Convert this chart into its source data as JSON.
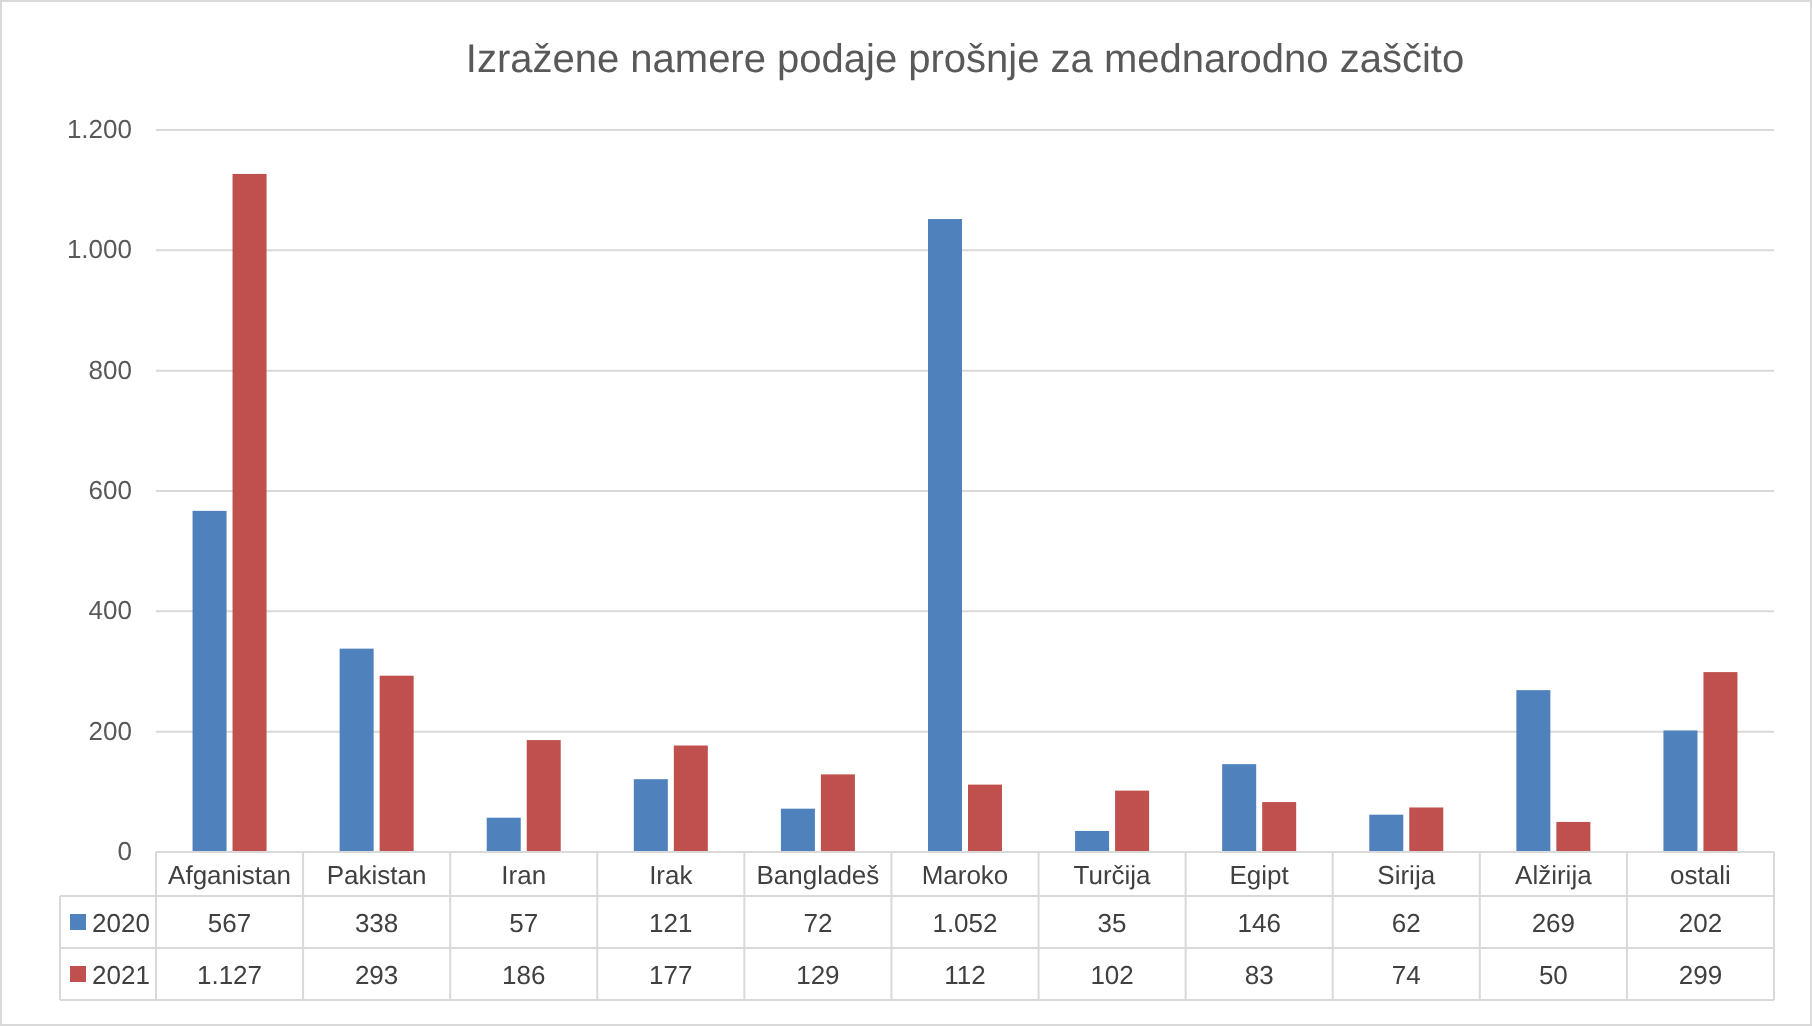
{
  "chart_data": {
    "type": "bar",
    "title": "Izražene namere podaje prošnje za mednarodno zaščito",
    "categories": [
      "Afganistan",
      "Pakistan",
      "Iran",
      "Irak",
      "Bangladeš",
      "Maroko",
      "Turčija",
      "Egipt",
      "Sirija",
      "Alžirija",
      "ostali"
    ],
    "series": [
      {
        "name": "2020",
        "color": "#4f81bd",
        "values": [
          567,
          338,
          57,
          121,
          72,
          1052,
          35,
          146,
          62,
          269,
          202
        ],
        "value_labels": [
          "567",
          "338",
          "57",
          "121",
          "72",
          "1.052",
          "35",
          "146",
          "62",
          "269",
          "202"
        ]
      },
      {
        "name": "2021",
        "color": "#c0504d",
        "values": [
          1127,
          293,
          186,
          177,
          129,
          112,
          102,
          83,
          74,
          50,
          299
        ],
        "value_labels": [
          "1.127",
          "293",
          "186",
          "177",
          "129",
          "112",
          "102",
          "83",
          "74",
          "50",
          "299"
        ]
      }
    ],
    "ylim": [
      0,
      1200
    ],
    "yticks": [
      0,
      200,
      400,
      600,
      800,
      {
        "value": 1000,
        "label": "1.000"
      },
      {
        "value": 1200,
        "label": "1.200"
      }
    ],
    "grid": "y",
    "legend": "bottom"
  }
}
